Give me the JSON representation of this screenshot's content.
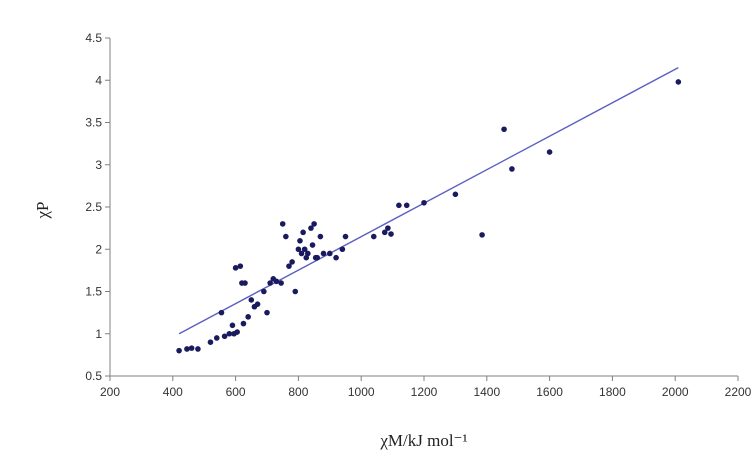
{
  "chart_data": {
    "type": "scatter",
    "xlabel": "χM/kJ mol⁻¹",
    "ylabel": "χP",
    "xlim": [
      200,
      2200
    ],
    "ylim": [
      0.5,
      4.5
    ],
    "xticks": [
      "200",
      "400",
      "600",
      "800",
      "1000",
      "1200",
      "1400",
      "1600",
      "1800",
      "2000",
      "2200"
    ],
    "yticks": [
      "0.5",
      "1",
      "1.5",
      "2",
      "2.5",
      "3",
      "3.5",
      "4",
      "4.5"
    ],
    "grid": false,
    "legend": "none",
    "series": [
      {
        "kind": "points",
        "color": "#1a1a5e",
        "x": [
          420,
          445,
          460,
          480,
          520,
          540,
          555,
          565,
          580,
          590,
          595,
          600,
          605,
          615,
          620,
          625,
          630,
          640,
          650,
          660,
          670,
          690,
          700,
          710,
          720,
          730,
          745,
          750,
          760,
          770,
          780,
          790,
          800,
          805,
          810,
          815,
          820,
          825,
          830,
          840,
          845,
          850,
          855,
          860,
          870,
          880,
          900,
          920,
          940,
          950,
          1040,
          1075,
          1085,
          1095,
          1120,
          1145,
          1200,
          1300,
          1385,
          1455,
          1480,
          1600,
          2010
        ],
        "y": [
          0.8,
          0.82,
          0.83,
          0.82,
          0.9,
          0.95,
          1.25,
          0.97,
          1.0,
          1.1,
          1.0,
          1.78,
          1.02,
          1.8,
          1.6,
          1.12,
          1.6,
          1.2,
          1.4,
          1.32,
          1.35,
          1.5,
          1.25,
          1.6,
          1.65,
          1.62,
          1.6,
          2.3,
          2.15,
          1.8,
          1.85,
          1.5,
          2.0,
          2.1,
          1.95,
          2.2,
          2.0,
          1.9,
          1.95,
          2.25,
          2.05,
          2.3,
          1.9,
          1.9,
          2.15,
          1.95,
          1.95,
          1.9,
          2.0,
          2.15,
          2.15,
          2.2,
          2.25,
          2.18,
          2.52,
          2.52,
          2.55,
          2.65,
          2.17,
          3.42,
          2.95,
          3.15,
          3.98
        ]
      },
      {
        "kind": "trendline",
        "color": "#5a5fc0",
        "x": [
          420,
          2010
        ],
        "y": [
          1.0,
          4.15
        ]
      }
    ]
  }
}
